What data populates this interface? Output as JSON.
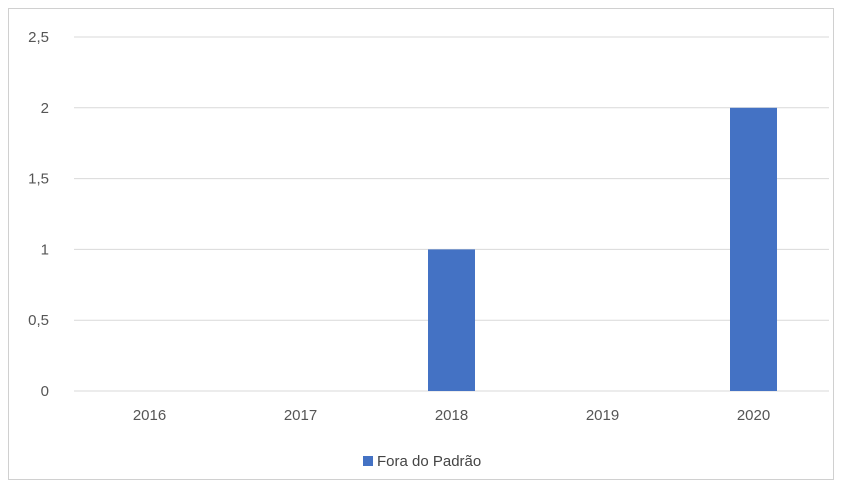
{
  "chart_data": {
    "type": "bar",
    "categories": [
      "2016",
      "2017",
      "2018",
      "2019",
      "2020"
    ],
    "series": [
      {
        "name": "Fora do Padrão",
        "values": [
          0,
          0,
          1,
          0,
          2
        ],
        "color": "#4472c4"
      }
    ],
    "ylim": [
      0,
      2.5
    ],
    "yticks": [
      0,
      0.5,
      1,
      1.5,
      2,
      2.5
    ],
    "ytick_labels": [
      "0",
      "0,5",
      "1",
      "1,5",
      "2",
      "2,5"
    ],
    "grid": true,
    "legend_position": "bottom"
  }
}
